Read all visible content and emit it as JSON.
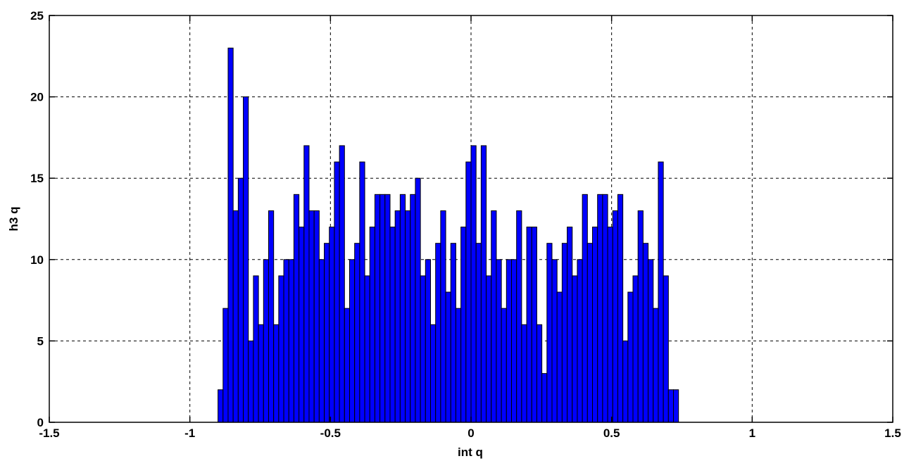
{
  "chart_data": {
    "type": "bar",
    "title": "",
    "xlabel": "int q",
    "ylabel": "h3 q",
    "xlim": [
      -1.5,
      1.5
    ],
    "ylim": [
      0,
      25
    ],
    "xticks": [
      -1.5,
      -1,
      -0.5,
      0,
      0.5,
      1,
      1.5
    ],
    "xtick_labels": [
      "-1.5",
      "-1",
      "-0.5",
      "0",
      "0.5",
      "1",
      "1.5"
    ],
    "yticks": [
      0,
      5,
      10,
      15,
      20,
      25
    ],
    "ytick_labels": [
      "0",
      "5",
      "10",
      "15",
      "20",
      "25"
    ],
    "grid": true,
    "bar_color": "#0000FF",
    "bin_start": -0.9,
    "bin_width": 0.018,
    "values": [
      2,
      7,
      23,
      13,
      15,
      20,
      5,
      9,
      6,
      10,
      13,
      6,
      9,
      10,
      10,
      14,
      12,
      17,
      13,
      13,
      10,
      11,
      12,
      16,
      17,
      7,
      10,
      11,
      16,
      9,
      12,
      14,
      14,
      14,
      12,
      13,
      14,
      13,
      14,
      15,
      9,
      10,
      6,
      11,
      13,
      8,
      11,
      7,
      12,
      16,
      17,
      11,
      17,
      9,
      13,
      10,
      7,
      10,
      10,
      13,
      6,
      12,
      12,
      6,
      3,
      11,
      10,
      8,
      11,
      12,
      9,
      10,
      14,
      11,
      12,
      14,
      14,
      12,
      13,
      14,
      5,
      8,
      9,
      13,
      11,
      10,
      7,
      16,
      9,
      2,
      2
    ]
  }
}
